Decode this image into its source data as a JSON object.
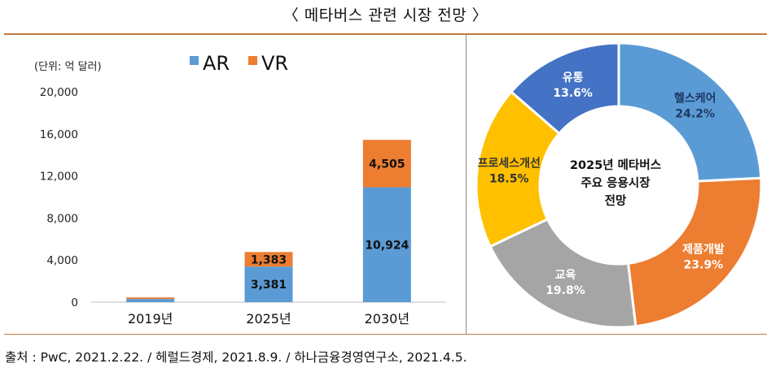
{
  "page_title": "〈 메타버스 관련 시장 전망 〉",
  "source_note": "출처 : PwC, 2021.2.22. / 헤럴드경제, 2021.8.9. / 하나금융경영연구소, 2021.4.5.",
  "chart_data": [
    {
      "type": "bar",
      "stacked": true,
      "unit_label": "(단위: 억 달러)",
      "categories": [
        "2019년",
        "2025년",
        "2030년"
      ],
      "series": [
        {
          "name": "AR",
          "color": "#5b9bd5",
          "values": [
            300,
            3381,
            10924
          ],
          "labels": [
            "",
            "3,381",
            "10,924"
          ]
        },
        {
          "name": "VR",
          "color": "#ed7d31",
          "values": [
            150,
            1383,
            4505
          ],
          "labels": [
            "",
            "1,383",
            "4,505"
          ]
        }
      ],
      "ylim": [
        0,
        20000
      ],
      "yticks": [
        0,
        4000,
        8000,
        12000,
        16000,
        20000
      ],
      "ytick_labels": [
        "0",
        "4,000",
        "8,000",
        "12,000",
        "16,000",
        "20,000"
      ],
      "legend_position": "top",
      "grid": false
    },
    {
      "type": "pie",
      "donut": true,
      "center_label": [
        "2025년 메타버스",
        "주요 응용시장",
        "전망"
      ],
      "slices": [
        {
          "name": "헬스케어",
          "value": 24.2,
          "label": "24.2%",
          "color": "#5b9bd5",
          "text_color": "#1f3864"
        },
        {
          "name": "제품개발",
          "value": 23.9,
          "label": "23.9%",
          "color": "#ed7d31",
          "text_color": "#ffffff"
        },
        {
          "name": "교육",
          "value": 19.8,
          "label": "19.8%",
          "color": "#a5a5a5",
          "text_color": "#ffffff"
        },
        {
          "name": "프로세스개선",
          "value": 18.5,
          "label": "18.5%",
          "color": "#ffc000",
          "text_color": "#333333"
        },
        {
          "name": "유통",
          "value": 13.6,
          "label": "13.6%",
          "color": "#4472c4",
          "text_color": "#ffffff"
        }
      ]
    }
  ]
}
